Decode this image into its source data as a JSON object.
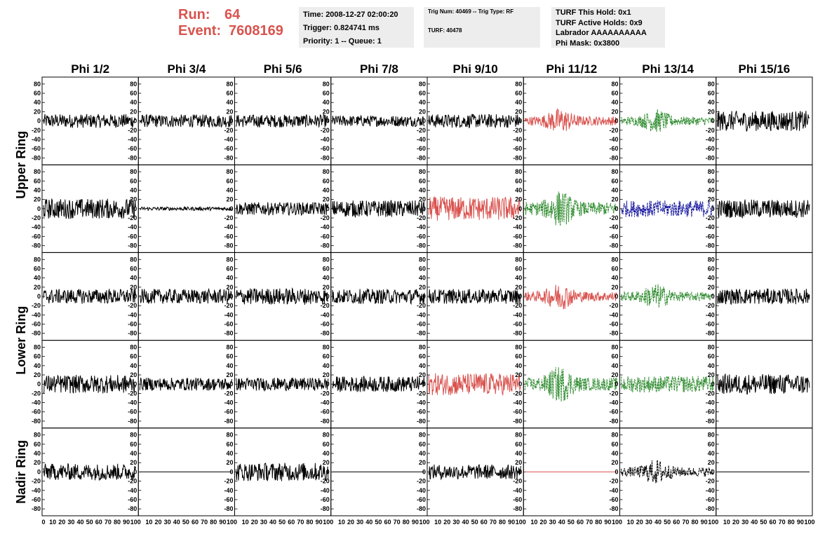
{
  "header": {
    "run_label": "Run:",
    "run_value": "64",
    "event_label": "Event:",
    "event_value": "7608169",
    "time": "Time: 2008-12-27 02:00:20",
    "trigger": "Trigger: 0.824741 ms",
    "priority": "Priority: 1 -- Queue: 1",
    "trig_num": "Trig Num: 40469 -- Trig Type: RF",
    "turf": "TURF: 40478",
    "turf_this_hold": "TURF This Hold: 0x1",
    "turf_active_holds": "TURF Active Holds: 0x9",
    "labrador": "Labrador AAAAAAAAAA",
    "phi_mask": "Phi Mask: 0x3800"
  },
  "columns": [
    "Phi 1/2",
    "Phi 3/4",
    "Phi 5/6",
    "Phi 7/8",
    "Phi 9/10",
    "Phi 11/12",
    "Phi 13/14",
    "Phi 15/16"
  ],
  "ring_labels": [
    "Upper Ring",
    "Lower Ring",
    "Nadir Ring"
  ],
  "colors": {
    "red": "#d9534f",
    "black": "#000000",
    "green": "#2e8b2e",
    "blue": "#1a1aa0",
    "accent": "#d9534f"
  },
  "chart_data": {
    "type": "line",
    "xlim": [
      0,
      100
    ],
    "ylim": [
      -95,
      95
    ],
    "y_ticks": [
      "80",
      "60",
      "40",
      "20",
      "0",
      "-20",
      "-40",
      "-60",
      "-80"
    ],
    "x_ticks": [
      "0",
      "10",
      "20",
      "30",
      "40",
      "50",
      "60",
      "70",
      "80",
      "90",
      "100"
    ],
    "rows": [
      [
        {
          "c": "black",
          "a": 15,
          "s": "l"
        },
        {
          "c": "black",
          "a": 14,
          "s": "l"
        },
        {
          "c": "black",
          "a": 14,
          "s": "l"
        },
        {
          "c": "black",
          "a": 12,
          "s": "l"
        },
        {
          "c": "black",
          "a": 15,
          "s": "l"
        },
        {
          "c": "red",
          "a": 28,
          "s": "b"
        },
        {
          "c": "green",
          "a": 26,
          "s": "b",
          "d": 1
        },
        {
          "c": "black",
          "a": 22,
          "s": "l"
        }
      ],
      [
        {
          "c": "black",
          "a": 22,
          "s": "l"
        },
        {
          "c": "black",
          "a": 4,
          "s": "l"
        },
        {
          "c": "black",
          "a": 14,
          "s": "l"
        },
        {
          "c": "black",
          "a": 18,
          "s": "l"
        },
        {
          "c": "red",
          "a": 26,
          "s": "l"
        },
        {
          "c": "green",
          "a": 40,
          "s": "b",
          "d": 1
        },
        {
          "c": "blue",
          "a": 18,
          "s": "l",
          "d": 1
        },
        {
          "c": "black",
          "a": 20,
          "s": "l"
        }
      ],
      [
        {
          "c": "black",
          "a": 16,
          "s": "l"
        },
        {
          "c": "black",
          "a": 16,
          "s": "l"
        },
        {
          "c": "black",
          "a": 18,
          "s": "l"
        },
        {
          "c": "black",
          "a": 16,
          "s": "l"
        },
        {
          "c": "black",
          "a": 16,
          "s": "l"
        },
        {
          "c": "red",
          "a": 30,
          "s": "b"
        },
        {
          "c": "green",
          "a": 28,
          "s": "b",
          "d": 1
        },
        {
          "c": "black",
          "a": 17,
          "s": "l"
        }
      ],
      [
        {
          "c": "black",
          "a": 20,
          "s": "l"
        },
        {
          "c": "black",
          "a": 14,
          "s": "l"
        },
        {
          "c": "black",
          "a": 14,
          "s": "l"
        },
        {
          "c": "black",
          "a": 17,
          "s": "l"
        },
        {
          "c": "red",
          "a": 24,
          "s": "l"
        },
        {
          "c": "green",
          "a": 40,
          "s": "b",
          "d": 1
        },
        {
          "c": "green",
          "a": 18,
          "s": "l",
          "d": 1
        },
        {
          "c": "black",
          "a": 22,
          "s": "l"
        }
      ],
      [
        {
          "c": "black",
          "a": 18,
          "s": "l"
        },
        {
          "c": "black",
          "a": 0,
          "s": "f"
        },
        {
          "c": "black",
          "a": 20,
          "s": "l"
        },
        {
          "c": "black",
          "a": 0,
          "s": "f"
        },
        {
          "c": "black",
          "a": 16,
          "s": "l"
        },
        {
          "c": "red",
          "a": 0,
          "s": "f"
        },
        {
          "c": "black",
          "a": 28,
          "s": "b",
          "d": 1
        },
        {
          "c": "black",
          "a": 0,
          "s": "f"
        }
      ]
    ]
  }
}
